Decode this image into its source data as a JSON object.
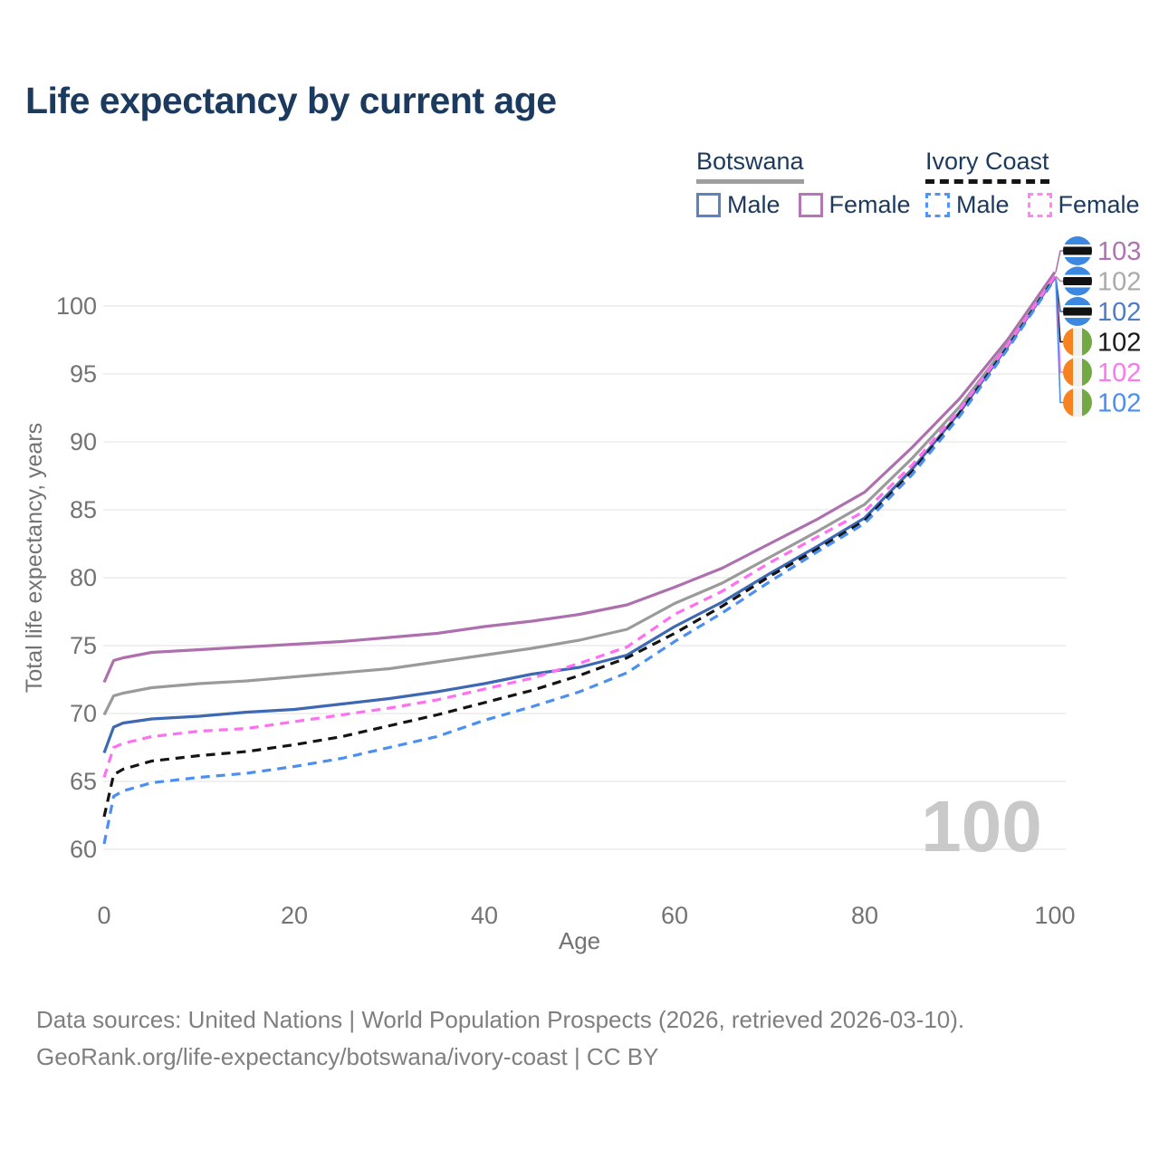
{
  "title": "Life expectancy by current age",
  "legend": {
    "groups": [
      {
        "label": "Botswana",
        "line_style": "solid",
        "items": [
          {
            "label": "Male",
            "color": "#5b83c4"
          },
          {
            "label": "Female",
            "color": "#b476b4"
          }
        ]
      },
      {
        "label": "Ivory Coast",
        "line_style": "dashed",
        "items": [
          {
            "label": "Male",
            "color": "#4e95f5"
          },
          {
            "label": "Female",
            "color": "#ff85f2"
          }
        ]
      }
    ]
  },
  "chart_data": {
    "type": "line",
    "title": "Life expectancy by current age",
    "xlabel": "Age",
    "ylabel": "Total life expectancy, years",
    "xlim": [
      0,
      100
    ],
    "ylim": [
      60,
      103
    ],
    "xticks": [
      "0",
      "20",
      "40",
      "60",
      "80",
      "100"
    ],
    "yticks": [
      "60",
      "65",
      "70",
      "75",
      "80",
      "85",
      "90",
      "95",
      "100"
    ],
    "grid": true,
    "legend_position": "top-right",
    "watermark": "100",
    "x": [
      0,
      1,
      2,
      5,
      10,
      15,
      20,
      25,
      30,
      35,
      40,
      45,
      50,
      55,
      60,
      65,
      70,
      75,
      80,
      85,
      90,
      95,
      100
    ],
    "series": [
      {
        "name": "Botswana Female",
        "slug": "botswana-female",
        "color": "#ad6fad",
        "dash": "solid",
        "flag": "botswana",
        "end_label": "103",
        "end_color": "#b172b1",
        "values": [
          72.3,
          73.9,
          74.1,
          74.5,
          74.7,
          74.9,
          75.1,
          75.3,
          75.6,
          75.9,
          76.4,
          76.8,
          77.3,
          78.0,
          79.3,
          80.7,
          82.5,
          84.3,
          86.3,
          89.6,
          93.2,
          97.5,
          102.5
        ]
      },
      {
        "name": "Botswana",
        "slug": "botswana-total",
        "color": "#9a9a9a",
        "dash": "solid",
        "flag": "botswana",
        "end_label": "102",
        "end_color": "#ababab",
        "values": [
          69.9,
          71.3,
          71.5,
          71.9,
          72.2,
          72.4,
          72.7,
          73.0,
          73.3,
          73.8,
          74.3,
          74.8,
          75.4,
          76.2,
          78.1,
          79.6,
          81.5,
          83.4,
          85.4,
          88.8,
          92.6,
          97.2,
          102.2
        ]
      },
      {
        "name": "Botswana Male",
        "slug": "botswana-male",
        "color": "#3e68b2",
        "dash": "solid",
        "flag": "botswana",
        "end_label": "102",
        "end_color": "#4f7dc4",
        "values": [
          67.1,
          69.0,
          69.3,
          69.6,
          69.8,
          70.1,
          70.3,
          70.7,
          71.1,
          71.6,
          72.2,
          72.9,
          73.4,
          74.3,
          76.4,
          78.2,
          80.3,
          82.3,
          84.4,
          88.0,
          92.2,
          97.0,
          102.1
        ]
      },
      {
        "name": "Ivory Coast",
        "slug": "ivory-coast-total",
        "color": "#141414",
        "dash": "dashed",
        "flag": "ivory_coast",
        "end_label": "102",
        "end_color": "#1a1a1a",
        "values": [
          62.4,
          65.5,
          65.9,
          66.5,
          66.9,
          67.2,
          67.7,
          68.3,
          69.1,
          69.9,
          70.8,
          71.7,
          72.8,
          74.1,
          75.9,
          77.9,
          80.1,
          82.1,
          84.2,
          87.8,
          92.1,
          96.9,
          102.1
        ]
      },
      {
        "name": "Ivory Coast Female",
        "slug": "ivory-coast-female",
        "color": "#ff6ff1",
        "dash": "dashed",
        "flag": "ivory_coast",
        "end_label": "102",
        "end_color": "#fb79ee",
        "values": [
          65.3,
          67.5,
          67.8,
          68.3,
          68.7,
          68.9,
          69.4,
          69.9,
          70.4,
          71.0,
          71.8,
          72.6,
          73.7,
          74.9,
          77.3,
          79.0,
          81.1,
          83.0,
          84.9,
          88.3,
          92.4,
          97.1,
          102.2
        ]
      },
      {
        "name": "Ivory Coast Male",
        "slug": "ivory-coast-male",
        "color": "#4b90f0",
        "dash": "dashed",
        "flag": "ivory_coast",
        "end_label": "102",
        "end_color": "#4b8ef2",
        "values": [
          60.4,
          63.9,
          64.3,
          64.9,
          65.3,
          65.6,
          66.1,
          66.7,
          67.5,
          68.3,
          69.5,
          70.5,
          71.6,
          73.0,
          75.3,
          77.4,
          79.7,
          81.9,
          84.0,
          87.6,
          91.9,
          96.8,
          102.0
        ]
      }
    ],
    "flags": {
      "botswana": {
        "bg": "#3c87e0",
        "band": "#111111",
        "band_border": "#ffffff"
      },
      "ivory_coast": {
        "left": "#f78320",
        "middle": "#f1f1ef",
        "right": "#73a942"
      }
    },
    "axis_color": "#737373",
    "grid_color": "#e6e6e6",
    "watermark_color": "#c9c9c9"
  },
  "footer": {
    "line1": "Data sources: United Nations | World Population Prospects (2026, retrieved 2026-03-10).",
    "line2": "GeoRank.org/life-expectancy/botswana/ivory-coast | CC BY"
  }
}
